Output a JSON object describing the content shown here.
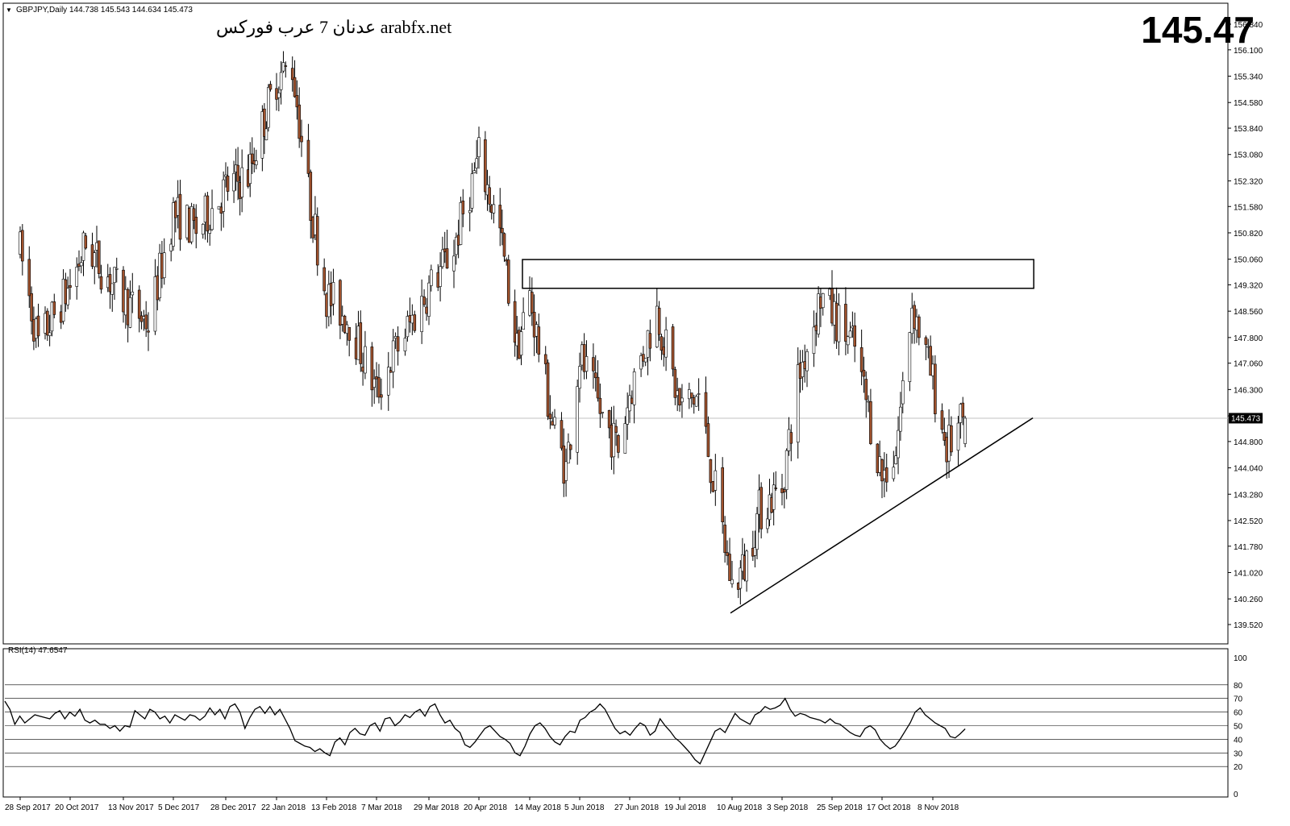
{
  "header": {
    "symbol_info": "GBPJPY,Daily  144.738 145.543 144.634 145.473",
    "watermark": "عدنان 7 عرب فوركس arabfx.net",
    "current_price_big": "145.47",
    "current_price_tag": "145.473"
  },
  "colors": {
    "background": "#ffffff",
    "candle_up": "#ffffff",
    "candle_down": "#a0522d",
    "wick": "#000000",
    "grid": "#000000",
    "price_line": "#c0c0c0",
    "tag_bg": "#000000",
    "tag_fg": "#ffffff"
  },
  "chart_data": [
    {
      "type": "candlestick",
      "symbol": "GBPJPY",
      "timeframe": "Daily",
      "ylim": [
        139.52,
        157.22
      ],
      "y_ticks": [
        "156.840",
        "156.100",
        "155.340",
        "154.580",
        "153.840",
        "153.080",
        "152.320",
        "151.580",
        "150.820",
        "150.060",
        "149.320",
        "148.560",
        "147.800",
        "147.060",
        "146.300",
        "145.540",
        "144.800",
        "144.040",
        "143.280",
        "142.520",
        "141.780",
        "141.020",
        "140.260",
        "139.520"
      ],
      "x_labels": [
        "28 Sep 2017",
        "20 Oct 2017",
        "13 Nov 2017",
        "5 Dec 2017",
        "28 Dec 2017",
        "22 Jan 2018",
        "13 Feb 2018",
        "7 Mar 2018",
        "29 Mar 2018",
        "20 Apr 2018",
        "14 May 2018",
        "5 Jun 2018",
        "27 Jun 2018",
        "19 Jul 2018",
        "10 Aug 2018",
        "3 Sep 2018",
        "25 Sep 2018",
        "17 Oct 2018",
        "8 Nov 2018"
      ],
      "last_price": 145.473,
      "close_path": [
        {
          "date": "28 Sep 2017",
          "close": 150.3
        },
        {
          "date": "06 Oct 2017",
          "close": 147.6
        },
        {
          "date": "20 Oct 2017",
          "close": 149.3
        },
        {
          "date": "27 Oct 2017",
          "close": 150.5
        },
        {
          "date": "13 Nov 2017",
          "close": 148.9
        },
        {
          "date": "24 Nov 2017",
          "close": 148.2
        },
        {
          "date": "5 Dec 2017",
          "close": 151.4
        },
        {
          "date": "15 Dec 2017",
          "close": 150.9
        },
        {
          "date": "28 Dec 2017",
          "close": 152.1
        },
        {
          "date": "08 Jan 2018",
          "close": 152.5
        },
        {
          "date": "22 Jan 2018",
          "close": 155.3
        },
        {
          "date": "29 Jan 2018",
          "close": 155.6
        },
        {
          "date": "05 Feb 2018",
          "close": 152.0
        },
        {
          "date": "13 Feb 2018",
          "close": 149.0
        },
        {
          "date": "23 Feb 2018",
          "close": 148.3
        },
        {
          "date": "7 Mar 2018",
          "close": 146.2
        },
        {
          "date": "14 Mar 2018",
          "close": 147.3
        },
        {
          "date": "29 Mar 2018",
          "close": 149.2
        },
        {
          "date": "09 Apr 2018",
          "close": 150.4
        },
        {
          "date": "20 Apr 2018",
          "close": 153.0
        },
        {
          "date": "30 Apr 2018",
          "close": 150.8
        },
        {
          "date": "08 May 2018",
          "close": 147.5
        },
        {
          "date": "14 May 2018",
          "close": 149.0
        },
        {
          "date": "24 May 2018",
          "close": 145.3
        },
        {
          "date": "30 May 2018",
          "close": 144.0
        },
        {
          "date": "5 Jun 2018",
          "close": 147.3
        },
        {
          "date": "15 Jun 2018",
          "close": 145.5
        },
        {
          "date": "22 Jun 2018",
          "close": 144.6
        },
        {
          "date": "27 Jun 2018",
          "close": 146.2
        },
        {
          "date": "09 Jul 2018",
          "close": 148.6
        },
        {
          "date": "19 Jul 2018",
          "close": 145.8
        },
        {
          "date": "27 Jul 2018",
          "close": 146.1
        },
        {
          "date": "10 Aug 2018",
          "close": 140.6
        },
        {
          "date": "16 Aug 2018",
          "close": 141.2
        },
        {
          "date": "23 Aug 2018",
          "close": 142.8
        },
        {
          "date": "3 Sep 2018",
          "close": 143.5
        },
        {
          "date": "10 Sep 2018",
          "close": 146.6
        },
        {
          "date": "20 Sep 2018",
          "close": 149.0
        },
        {
          "date": "25 Sep 2018",
          "close": 148.5
        },
        {
          "date": "05 Oct 2018",
          "close": 147.5
        },
        {
          "date": "17 Oct 2018",
          "close": 143.8
        },
        {
          "date": "23 Oct 2018",
          "close": 144.5
        },
        {
          "date": "30 Oct 2018",
          "close": 148.8
        },
        {
          "date": "8 Nov 2018",
          "close": 146.5
        },
        {
          "date": "14 Nov 2018",
          "close": 144.6
        },
        {
          "date": "22 Nov 2018",
          "close": 145.473
        }
      ],
      "annotations": {
        "resistance_zone": {
          "date_start": "14 May 2018",
          "date_end": "14 Nov 2018",
          "price_top": 150.05,
          "price_bottom": 149.22
        },
        "trend_line": {
          "start": {
            "date": "10 Aug 2018",
            "price": 139.85
          },
          "end": {
            "date": "29 Nov 2018",
            "price": 145.48
          }
        }
      }
    },
    {
      "type": "line",
      "name": "RSI(14)",
      "label": "RSI(14) 47.6547",
      "ylim": [
        0,
        100
      ],
      "levels": [
        80,
        70,
        60,
        50,
        40,
        30,
        20
      ],
      "y_ticks": [
        "100",
        "80",
        "70",
        "60",
        "50",
        "40",
        "30",
        "20",
        "0"
      ],
      "values": [
        68,
        62,
        51,
        57,
        52,
        55,
        58,
        57,
        56,
        55,
        59,
        61,
        55,
        60,
        57,
        62,
        54,
        52,
        54,
        51,
        51,
        48,
        50,
        46,
        50,
        49,
        61,
        58,
        55,
        62,
        60,
        55,
        57,
        52,
        58,
        56,
        54,
        58,
        57,
        54,
        57,
        63,
        58,
        62,
        55,
        64,
        66,
        60,
        48,
        56,
        62,
        64,
        59,
        64,
        58,
        62,
        55,
        48,
        39,
        37,
        35,
        34,
        31,
        33,
        30,
        28,
        38,
        41,
        36,
        45,
        48,
        44,
        43,
        50,
        52,
        46,
        55,
        56,
        50,
        53,
        58,
        56,
        60,
        62,
        57,
        64,
        66,
        58,
        52,
        54,
        48,
        45,
        36,
        34,
        38,
        43,
        48,
        50,
        46,
        42,
        40,
        37,
        30,
        28,
        35,
        44,
        50,
        52,
        48,
        42,
        38,
        36,
        42,
        46,
        45,
        54,
        56,
        60,
        62,
        66,
        62,
        55,
        48,
        44,
        46,
        43,
        48,
        52,
        50,
        43,
        46,
        55,
        50,
        46,
        41,
        38,
        34,
        30,
        25,
        22,
        30,
        38,
        46,
        48,
        45,
        52,
        59,
        55,
        53,
        51,
        58,
        60,
        64,
        62,
        63,
        65,
        70,
        62,
        57,
        59,
        58,
        56,
        55,
        54,
        52,
        55,
        52,
        51,
        48,
        45,
        43,
        42,
        48,
        50,
        47,
        40,
        36,
        33,
        35,
        40,
        46,
        52,
        60,
        63,
        58,
        55,
        52,
        50,
        48,
        42,
        41,
        44,
        47.6547
      ]
    }
  ]
}
